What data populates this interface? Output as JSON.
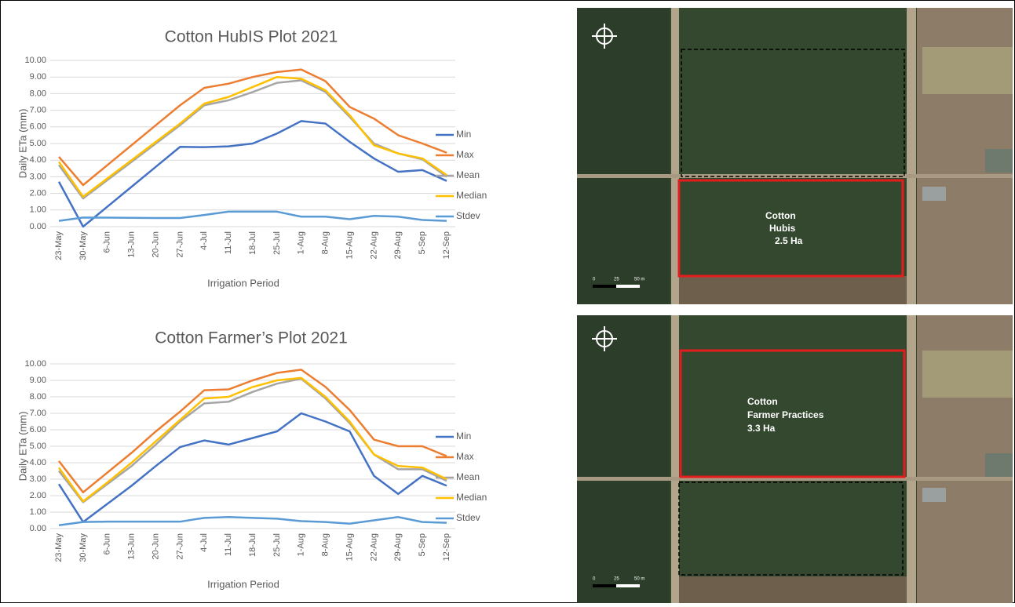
{
  "chart_data": [
    {
      "type": "line",
      "title": "Cotton HubIS Plot 2021",
      "x_label": "Irrigation Period",
      "y_label": "Daily ETa (mm)",
      "categories": [
        "23-May",
        "30-May",
        "6-Jun",
        "13-Jun",
        "20-Jun",
        "27-Jun",
        "4-Jul",
        "11-Jul",
        "18-Jul",
        "25-Jul",
        "1-Aug",
        "8-Aug",
        "15-Aug",
        "22-Aug",
        "29-Aug",
        "5-Sep",
        "12-Sep"
      ],
      "ylim": [
        0,
        10
      ],
      "yticks": [
        {
          "value": 0,
          "label": "0.00"
        },
        {
          "value": 1,
          "label": "1.00"
        },
        {
          "value": 2,
          "label": "2.00"
        },
        {
          "value": 3,
          "label": "3.00"
        },
        {
          "value": 4,
          "label": "4.00"
        },
        {
          "value": 5,
          "label": "5.00"
        },
        {
          "value": 6,
          "label": "6.00"
        },
        {
          "value": 7,
          "label": "7.00"
        },
        {
          "value": 8,
          "label": "8.00"
        },
        {
          "value": 9,
          "label": "9.00"
        },
        {
          "value": 10,
          "label": "10.00"
        }
      ],
      "grid": true,
      "legend": "right",
      "series": [
        {
          "name": "Min",
          "color": "#4472c4",
          "values": [
            2.7,
            0.0,
            1.2,
            2.4,
            3.6,
            4.8,
            4.78,
            4.83,
            5.0,
            5.6,
            6.35,
            6.2,
            5.1,
            4.1,
            3.3,
            3.4,
            2.75
          ]
        },
        {
          "name": "Max",
          "color": "#ed7d31",
          "values": [
            4.2,
            2.5,
            3.7,
            4.9,
            6.1,
            7.3,
            8.35,
            8.6,
            9.0,
            9.3,
            9.45,
            8.75,
            7.2,
            6.5,
            5.5,
            5.0,
            4.45
          ]
        },
        {
          "name": "Mean",
          "color": "#a5a5a5",
          "values": [
            3.7,
            1.7,
            2.8,
            3.9,
            5.0,
            6.1,
            7.3,
            7.6,
            8.1,
            8.65,
            8.8,
            8.1,
            6.6,
            5.0,
            4.4,
            4.05,
            3.0
          ]
        },
        {
          "name": "Median",
          "color": "#ffc000",
          "values": [
            3.9,
            1.8,
            2.9,
            4.0,
            5.1,
            6.2,
            7.4,
            7.8,
            8.4,
            9.0,
            8.9,
            8.2,
            6.7,
            4.9,
            4.4,
            4.1,
            3.1
          ]
        },
        {
          "name": "Stdev",
          "color": "#5b9bd5",
          "values": [
            0.35,
            0.55,
            0.54,
            0.53,
            0.52,
            0.52,
            0.7,
            0.9,
            0.9,
            0.9,
            0.6,
            0.6,
            0.45,
            0.65,
            0.6,
            0.4,
            0.35
          ]
        }
      ]
    },
    {
      "type": "line",
      "title": "Cotton Farmer’s Plot 2021",
      "x_label": "Irrigation Period",
      "y_label": "Daily ETa (mm)",
      "categories": [
        "23-May",
        "30-May",
        "6-Jun",
        "13-Jun",
        "20-Jun",
        "27-Jun",
        "4-Jul",
        "11-Jul",
        "18-Jul",
        "25-Jul",
        "1-Aug",
        "8-Aug",
        "15-Aug",
        "22-Aug",
        "29-Aug",
        "5-Sep",
        "12-Sep"
      ],
      "ylim": [
        0,
        10
      ],
      "yticks": [
        {
          "value": 0,
          "label": "0.00"
        },
        {
          "value": 1,
          "label": "1.00"
        },
        {
          "value": 2,
          "label": "2.00"
        },
        {
          "value": 3,
          "label": "3.00"
        },
        {
          "value": 4,
          "label": "4.00"
        },
        {
          "value": 5,
          "label": "5.00"
        },
        {
          "value": 6,
          "label": "6.00"
        },
        {
          "value": 7,
          "label": "7.00"
        },
        {
          "value": 8,
          "label": "8.00"
        },
        {
          "value": 9,
          "label": "9.00"
        },
        {
          "value": 10,
          "label": "10.00"
        }
      ],
      "grid": true,
      "legend": "right",
      "series": [
        {
          "name": "Min",
          "color": "#4472c4",
          "values": [
            2.7,
            0.4,
            1.5,
            2.6,
            3.8,
            4.95,
            5.35,
            5.1,
            5.5,
            5.9,
            7.0,
            6.5,
            5.9,
            3.2,
            2.1,
            3.2,
            2.6
          ]
        },
        {
          "name": "Max",
          "color": "#ed7d31",
          "values": [
            4.1,
            2.2,
            3.4,
            4.6,
            5.9,
            7.1,
            8.4,
            8.45,
            9.0,
            9.45,
            9.65,
            8.6,
            7.2,
            5.4,
            5.0,
            5.0,
            4.4
          ]
        },
        {
          "name": "Mean",
          "color": "#a5a5a5",
          "values": [
            3.5,
            1.6,
            2.7,
            3.8,
            5.1,
            6.5,
            7.6,
            7.7,
            8.3,
            8.8,
            9.1,
            7.9,
            6.4,
            4.5,
            3.6,
            3.6,
            2.9
          ]
        },
        {
          "name": "Median",
          "color": "#ffc000",
          "values": [
            3.7,
            1.65,
            2.8,
            4.0,
            5.3,
            6.6,
            7.9,
            8.0,
            8.6,
            9.0,
            9.15,
            8.0,
            6.5,
            4.5,
            3.8,
            3.7,
            3.0
          ]
        },
        {
          "name": "Stdev",
          "color": "#5b9bd5",
          "values": [
            0.2,
            0.4,
            0.42,
            0.42,
            0.42,
            0.42,
            0.65,
            0.7,
            0.65,
            0.6,
            0.45,
            0.4,
            0.3,
            0.5,
            0.7,
            0.4,
            0.35
          ]
        }
      ]
    }
  ],
  "images": [
    {
      "label_lines": [
        "Cotton",
        "Hubis",
        "2.5 Ha"
      ],
      "scale_labels": [
        "0",
        "25",
        "50 m"
      ]
    },
    {
      "label_lines": [
        "Cotton",
        "Farmer Practices",
        "3.3 Ha"
      ],
      "scale_labels": [
        "0",
        "25",
        "50 m"
      ]
    }
  ]
}
